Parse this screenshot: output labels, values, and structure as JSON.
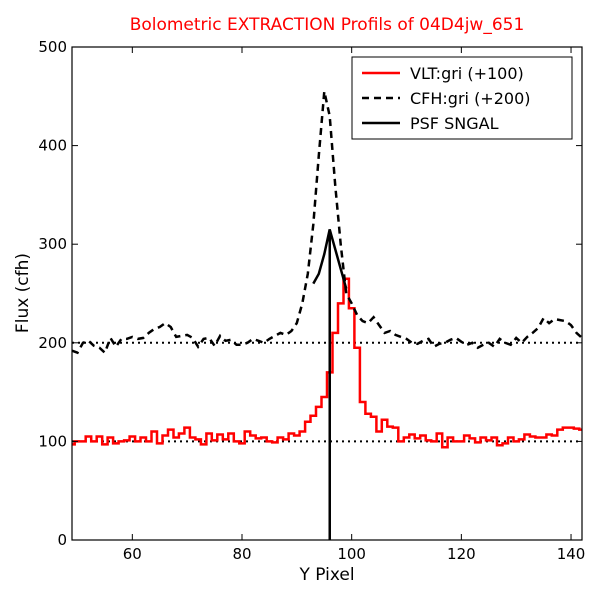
{
  "chart_data": {
    "type": "line",
    "title": "Bolometric EXTRACTION Profils of 04D4jw_651",
    "title_color": "#ff0000",
    "xlabel": "Y Pixel",
    "ylabel": "Flux (cfh)",
    "xlim": [
      49,
      142
    ],
    "ylim": [
      0,
      500
    ],
    "xticks": [
      60,
      80,
      100,
      120,
      140
    ],
    "xtick_labels": [
      "60",
      "80",
      "100",
      "120",
      "140"
    ],
    "yticks": [
      0,
      100,
      200,
      300,
      400,
      500
    ],
    "ytick_labels": [
      "0",
      "100",
      "200",
      "300",
      "400",
      "500"
    ],
    "legend_position": "top-right",
    "legend": [
      {
        "label": "VLT:gri (+100)",
        "color": "#ff0000",
        "style": "solid"
      },
      {
        "label": "CFH:gri (+200)",
        "color": "#000000",
        "style": "dashed"
      },
      {
        "label": "PSF SNGAL",
        "color": "#000000",
        "style": "solid"
      }
    ],
    "reference_lines": [
      {
        "y": 100,
        "style": "dotted",
        "color": "#000000"
      },
      {
        "y": 200,
        "style": "dotted",
        "color": "#000000"
      }
    ],
    "series": [
      {
        "name": "VLT:gri (+100)",
        "color": "#ff0000",
        "style": "steps",
        "x": [
          49,
          50,
          51,
          52,
          53,
          54,
          55,
          56,
          57,
          58,
          59,
          60,
          61,
          62,
          63,
          64,
          65,
          66,
          67,
          68,
          69,
          70,
          71,
          72,
          73,
          74,
          75,
          76,
          77,
          78,
          79,
          80,
          81,
          82,
          83,
          84,
          85,
          86,
          87,
          88,
          89,
          90,
          91,
          92,
          93,
          94,
          95,
          96,
          97,
          98,
          99,
          100,
          101,
          102,
          103,
          104,
          105,
          106,
          107,
          108,
          109,
          110,
          111,
          112,
          113,
          114,
          115,
          116,
          117,
          118,
          119,
          120,
          121,
          122,
          123,
          124,
          125,
          126,
          127,
          128,
          129,
          130,
          131,
          132,
          133,
          134,
          135,
          136,
          137,
          138,
          139,
          140,
          141,
          142
        ],
        "y": [
          97,
          100,
          100,
          105,
          100,
          105,
          97,
          104,
          98,
          100,
          101,
          105,
          100,
          104,
          100,
          110,
          98,
          106,
          112,
          104,
          108,
          114,
          104,
          102,
          97,
          108,
          101,
          107,
          102,
          108,
          100,
          98,
          110,
          106,
          103,
          104,
          100,
          99,
          104,
          102,
          108,
          106,
          110,
          120,
          126,
          135,
          145,
          170,
          210,
          240,
          265,
          235,
          195,
          140,
          128,
          125,
          110,
          122,
          115,
          114,
          100,
          104,
          107,
          103,
          106,
          101,
          100,
          108,
          94,
          104,
          100,
          100,
          106,
          103,
          99,
          104,
          101,
          104,
          96,
          98,
          104,
          100,
          102,
          107,
          105,
          104,
          104,
          107,
          106,
          112,
          114,
          114,
          113,
          112
        ]
      },
      {
        "name": "CFH:gri (+200)",
        "color": "#000000",
        "style": "dashed",
        "x": [
          49,
          50,
          51,
          52,
          53,
          54,
          55,
          56,
          57,
          58,
          59,
          60,
          61,
          62,
          63,
          64,
          65,
          66,
          67,
          68,
          69,
          70,
          71,
          72,
          73,
          74,
          75,
          76,
          77,
          78,
          79,
          80,
          81,
          82,
          83,
          84,
          85,
          86,
          87,
          88,
          89,
          90,
          91,
          92,
          93,
          94,
          95,
          96,
          97,
          98,
          99,
          100,
          101,
          102,
          103,
          104,
          105,
          106,
          107,
          108,
          109,
          110,
          111,
          112,
          113,
          114,
          115,
          116,
          117,
          118,
          119,
          120,
          121,
          122,
          123,
          124,
          125,
          126,
          127,
          128,
          129,
          130,
          131,
          132,
          133,
          134,
          135,
          136,
          137,
          138,
          139,
          140,
          141,
          142
        ],
        "y": [
          192,
          190,
          200,
          202,
          197,
          195,
          190,
          205,
          196,
          204,
          204,
          206,
          204,
          205,
          210,
          214,
          216,
          220,
          216,
          206,
          207,
          208,
          205,
          196,
          204,
          205,
          197,
          207,
          202,
          203,
          198,
          198,
          200,
          204,
          202,
          200,
          204,
          207,
          210,
          208,
          212,
          220,
          240,
          270,
          320,
          390,
          455,
          430,
          360,
          300,
          250,
          240,
          228,
          222,
          220,
          226,
          218,
          210,
          212,
          208,
          206,
          204,
          200,
          199,
          202,
          204,
          196,
          199,
          200,
          203,
          205,
          201,
          198,
          200,
          195,
          198,
          200,
          196,
          204,
          200,
          198,
          205,
          200,
          206,
          210,
          215,
          225,
          220,
          224,
          223,
          222,
          218,
          210,
          205
        ]
      },
      {
        "name": "PSF SNGAL",
        "color": "#000000",
        "style": "solid",
        "x": [
          93,
          94,
          95,
          96,
          97,
          98,
          99
        ],
        "y": [
          260,
          270,
          290,
          315,
          295,
          275,
          255
        ]
      }
    ],
    "vertical_line": {
      "x": 96,
      "color": "#000000"
    }
  }
}
